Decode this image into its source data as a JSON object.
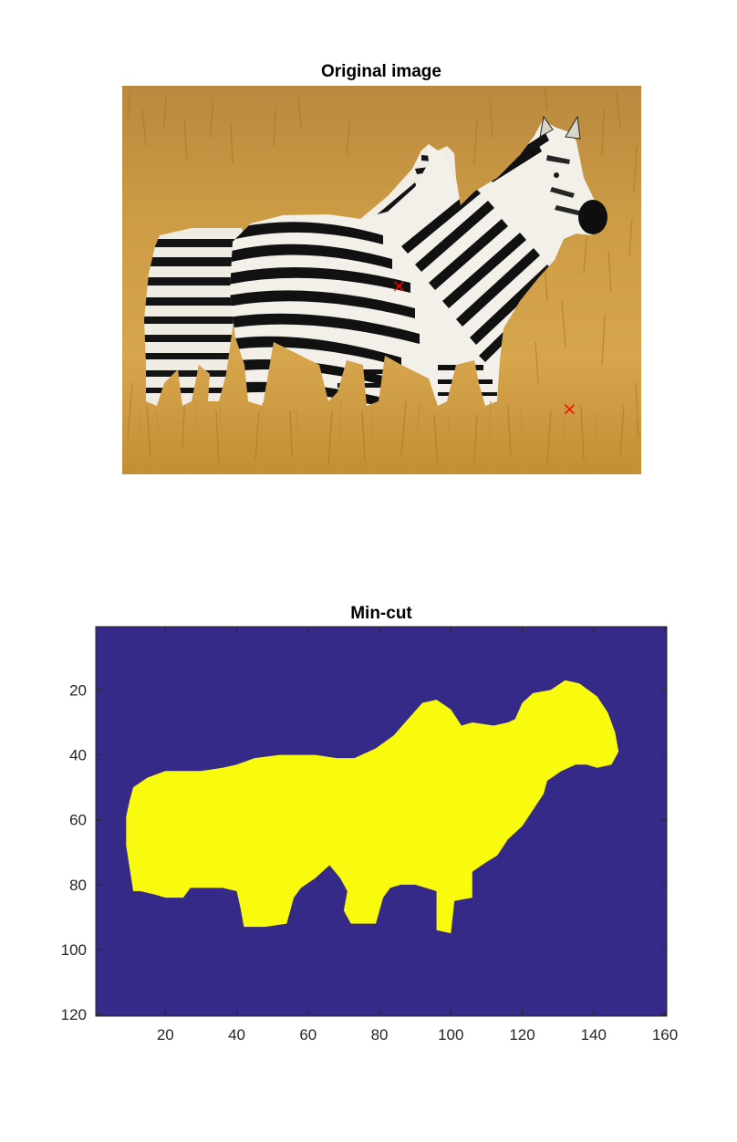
{
  "chart_data": [
    {
      "type": "image",
      "title": "Original image",
      "content": "photo of two zebras standing in golden grass",
      "colors": {
        "sky": "#b9893e",
        "grass": "#d2a24a",
        "grass_dark": "#a8761e",
        "stripe_dark": "#111111",
        "stripe_light": "#f2efe8",
        "marker": "#ff0000"
      },
      "markers": [
        {
          "x": 85.8,
          "y": 62.4,
          "symbol": "x",
          "color": "#ff0000"
        },
        {
          "x": 138.4,
          "y": 100.4,
          "symbol": "x",
          "color": "#ff0000"
        }
      ],
      "xlim": [
        0.5,
        160.5
      ],
      "ylim": [
        0.5,
        120.5
      ]
    },
    {
      "type": "heatmap",
      "title": "Min-cut",
      "xlim": [
        0.5,
        160.5
      ],
      "ylim": [
        0.5,
        120.5
      ],
      "xticks": [
        20,
        40,
        60,
        80,
        100,
        120,
        140,
        160
      ],
      "yticks": [
        20,
        40,
        60,
        80,
        100,
        120
      ],
      "background_value": 0,
      "foreground_value": 1,
      "colors": {
        "background": "#352a87",
        "foreground": "#f9fb0e",
        "axis": "#262626"
      },
      "foreground_outline": [
        [
          9,
          68
        ],
        [
          9,
          59
        ],
        [
          10,
          54
        ],
        [
          11,
          50
        ],
        [
          15,
          47
        ],
        [
          20,
          45
        ],
        [
          25,
          45
        ],
        [
          30,
          45
        ],
        [
          36,
          44
        ],
        [
          40,
          43
        ],
        [
          45,
          41
        ],
        [
          52,
          40
        ],
        [
          62,
          40
        ],
        [
          68,
          41
        ],
        [
          73,
          41
        ],
        [
          79,
          38
        ],
        [
          84,
          34
        ],
        [
          88,
          29
        ],
        [
          92,
          24
        ],
        [
          96,
          23
        ],
        [
          100,
          26
        ],
        [
          103,
          31
        ],
        [
          106,
          30
        ],
        [
          112,
          31
        ],
        [
          116,
          30
        ],
        [
          118,
          29
        ],
        [
          120,
          24
        ],
        [
          123,
          21
        ],
        [
          128,
          20
        ],
        [
          132,
          17
        ],
        [
          136,
          18
        ],
        [
          141,
          22
        ],
        [
          144,
          27
        ],
        [
          146,
          33
        ],
        [
          147,
          39
        ],
        [
          145,
          43
        ],
        [
          141,
          44
        ],
        [
          138,
          43
        ],
        [
          135,
          43
        ],
        [
          131,
          45
        ],
        [
          127,
          48
        ],
        [
          126,
          52
        ],
        [
          123,
          57
        ],
        [
          120,
          62
        ],
        [
          116,
          66
        ],
        [
          113,
          71
        ],
        [
          110,
          73
        ],
        [
          106,
          76
        ],
        [
          106,
          84
        ],
        [
          101,
          85
        ],
        [
          100,
          95
        ],
        [
          96,
          94
        ],
        [
          96,
          82
        ],
        [
          90,
          80
        ],
        [
          86,
          80
        ],
        [
          83,
          81
        ],
        [
          81,
          84
        ],
        [
          79,
          92
        ],
        [
          72,
          92
        ],
        [
          70,
          88
        ],
        [
          71,
          82
        ],
        [
          69,
          78
        ],
        [
          66,
          74
        ],
        [
          62,
          78
        ],
        [
          58,
          81
        ],
        [
          56,
          84
        ],
        [
          54,
          92
        ],
        [
          48,
          93
        ],
        [
          42,
          93
        ],
        [
          41,
          87
        ],
        [
          40,
          82
        ],
        [
          36,
          81
        ],
        [
          30,
          81
        ],
        [
          27,
          81
        ],
        [
          25,
          84
        ],
        [
          20,
          84
        ],
        [
          17,
          83
        ],
        [
          13,
          82
        ],
        [
          11,
          82
        ],
        [
          10,
          75
        ]
      ]
    }
  ]
}
